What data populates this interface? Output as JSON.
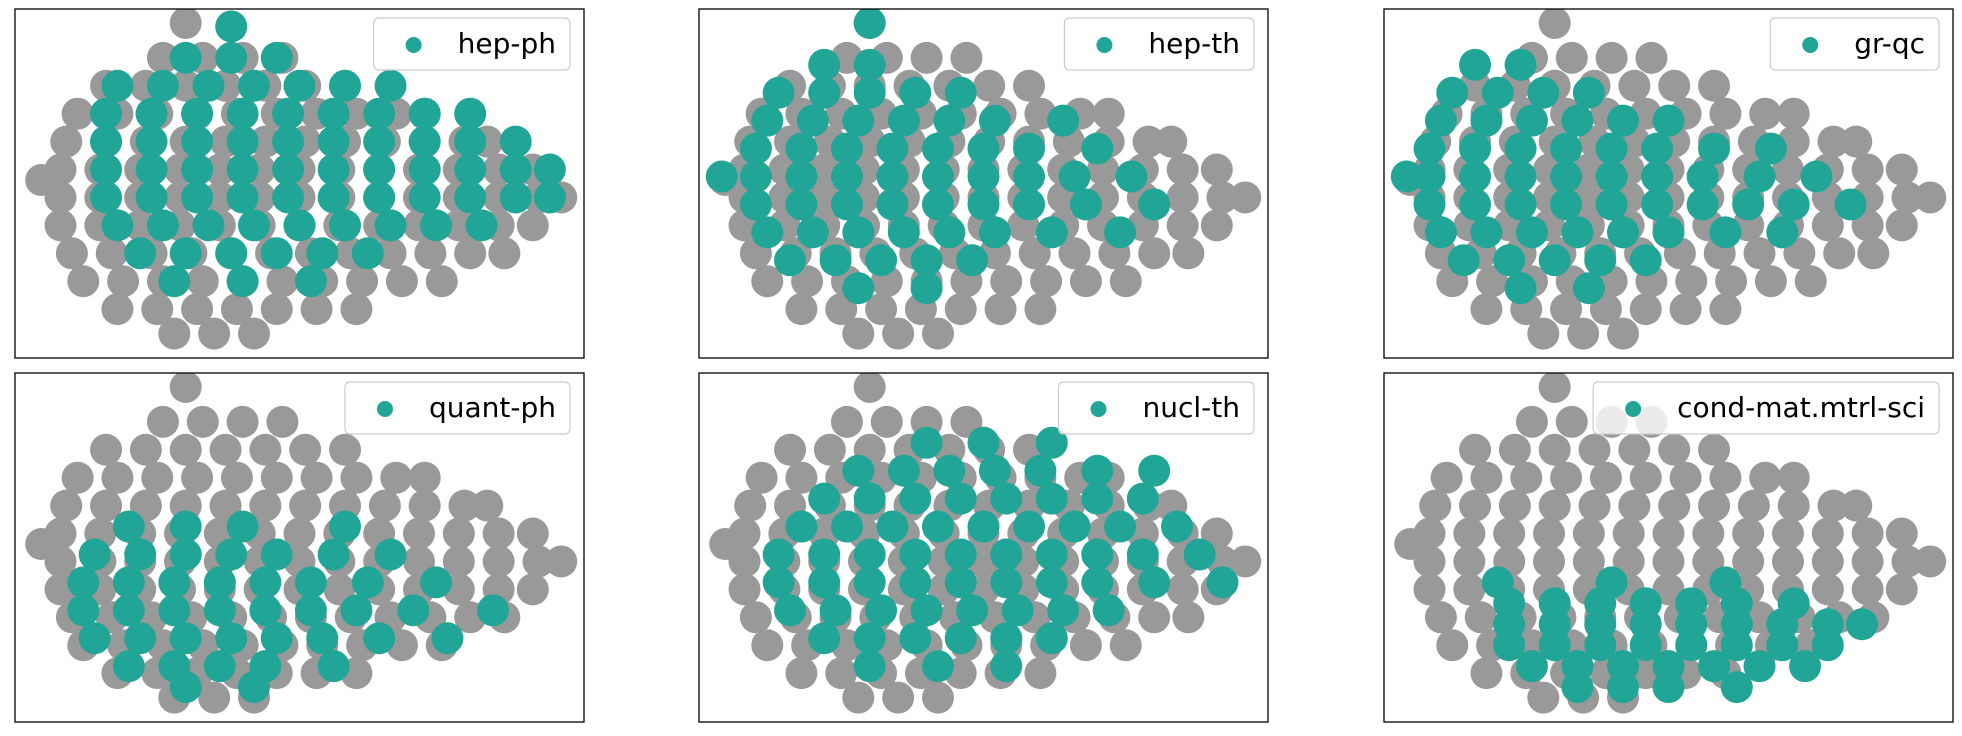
{
  "chart_data": {
    "type": "scatter",
    "xlim": [
      0,
      100
    ],
    "ylim": [
      0,
      100
    ],
    "legend": "upper right",
    "all_points": {
      "color": "#999999",
      "x": [
        26,
        33,
        40,
        47,
        16,
        23,
        30,
        37,
        44,
        51,
        58,
        11,
        18,
        25,
        32,
        39,
        46,
        53,
        60,
        67,
        72,
        9,
        16,
        23,
        30,
        37,
        44,
        51,
        58,
        65,
        72,
        79,
        83,
        8,
        15,
        22,
        29,
        36,
        43,
        50,
        57,
        64,
        71,
        78,
        85,
        91,
        8,
        15,
        22,
        29,
        36,
        43,
        50,
        57,
        64,
        71,
        78,
        85,
        92,
        96,
        8,
        15,
        22,
        29,
        36,
        43,
        50,
        57,
        64,
        71,
        78,
        85,
        91,
        10,
        17,
        24,
        31,
        38,
        45,
        52,
        59,
        66,
        73,
        80,
        86,
        12,
        19,
        26,
        33,
        40,
        47,
        54,
        61,
        68,
        75,
        18,
        25,
        32,
        39,
        46,
        53,
        60,
        28,
        35,
        42,
        4.6,
        30
      ],
      "y": [
        86,
        86,
        86,
        86,
        78,
        78,
        78,
        78,
        78,
        78,
        78,
        70,
        70,
        70,
        70,
        70,
        70,
        70,
        70,
        70,
        70,
        62,
        62,
        62,
        62,
        62,
        62,
        62,
        62,
        62,
        62,
        62,
        62,
        54,
        54,
        54,
        54,
        54,
        54,
        54,
        54,
        54,
        54,
        54,
        54,
        54,
        46,
        46,
        46,
        46,
        46,
        46,
        46,
        46,
        46,
        46,
        46,
        46,
        46,
        46,
        38,
        38,
        38,
        38,
        38,
        38,
        38,
        38,
        38,
        38,
        38,
        38,
        38,
        30,
        30,
        30,
        30,
        30,
        30,
        30,
        30,
        30,
        30,
        30,
        30,
        22,
        22,
        22,
        22,
        22,
        22,
        22,
        22,
        22,
        22,
        14,
        14,
        14,
        14,
        14,
        14,
        14,
        7,
        7,
        7,
        51,
        96
      ]
    },
    "panels": [
      {
        "name": "hep-ph",
        "color": "#21a597",
        "x": [
          30,
          38,
          46,
          38,
          18,
          26,
          34,
          42,
          50,
          58,
          66,
          16,
          24,
          32,
          40,
          48,
          56,
          64,
          72,
          80,
          16,
          24,
          32,
          40,
          48,
          56,
          64,
          72,
          80,
          88,
          16,
          24,
          32,
          40,
          48,
          56,
          64,
          72,
          80,
          88,
          94,
          16,
          24,
          32,
          40,
          48,
          56,
          64,
          72,
          80,
          88,
          94,
          18,
          26,
          34,
          42,
          50,
          58,
          66,
          74,
          82,
          22,
          30,
          38,
          46,
          54,
          62,
          28,
          40,
          52
        ],
        "y": [
          86,
          86,
          86,
          95,
          78,
          78,
          78,
          78,
          78,
          78,
          78,
          70,
          70,
          70,
          70,
          70,
          70,
          70,
          70,
          70,
          62,
          62,
          62,
          62,
          62,
          62,
          62,
          62,
          62,
          62,
          54,
          54,
          54,
          54,
          54,
          54,
          54,
          54,
          54,
          54,
          54,
          46,
          46,
          46,
          46,
          46,
          46,
          46,
          46,
          46,
          46,
          46,
          38,
          38,
          38,
          38,
          38,
          38,
          38,
          38,
          38,
          30,
          30,
          30,
          30,
          30,
          30,
          22,
          22,
          22
        ]
      },
      {
        "name": "hep-th",
        "color": "#21a597",
        "x": [
          30,
          22,
          30,
          14,
          22,
          30,
          38,
          46,
          12,
          20,
          28,
          36,
          44,
          52,
          64,
          10,
          18,
          26,
          34,
          42,
          50,
          58,
          70,
          4,
          10,
          18,
          26,
          34,
          42,
          50,
          58,
          66,
          76,
          10,
          18,
          26,
          34,
          42,
          50,
          58,
          68,
          80,
          12,
          20,
          28,
          36,
          44,
          52,
          62,
          74,
          16,
          24,
          32,
          40,
          48,
          28,
          40
        ],
        "y": [
          96,
          84,
          84,
          76,
          76,
          76,
          76,
          76,
          68,
          68,
          68,
          68,
          68,
          68,
          68,
          60,
          60,
          60,
          60,
          60,
          60,
          60,
          60,
          52,
          52,
          52,
          52,
          52,
          52,
          52,
          52,
          52,
          52,
          44,
          44,
          44,
          44,
          44,
          44,
          44,
          44,
          44,
          36,
          36,
          36,
          36,
          36,
          36,
          36,
          36,
          28,
          28,
          28,
          28,
          28,
          20,
          20
        ]
      },
      {
        "name": "gr-qc",
        "color": "#21a597",
        "x": [
          16,
          24,
          12,
          20,
          28,
          36,
          10,
          18,
          26,
          34,
          42,
          50,
          8,
          16,
          24,
          32,
          40,
          48,
          58,
          68,
          4,
          8,
          16,
          24,
          32,
          40,
          48,
          56,
          66,
          76,
          8,
          16,
          24,
          32,
          40,
          48,
          56,
          64,
          72,
          82,
          10,
          18,
          26,
          34,
          42,
          50,
          60,
          70,
          14,
          22,
          30,
          38,
          46,
          24,
          36
        ],
        "y": [
          84,
          84,
          76,
          76,
          76,
          76,
          68,
          68,
          68,
          68,
          68,
          68,
          60,
          60,
          60,
          60,
          60,
          60,
          60,
          60,
          52,
          52,
          52,
          52,
          52,
          52,
          52,
          52,
          52,
          52,
          44,
          44,
          44,
          44,
          44,
          44,
          44,
          44,
          44,
          44,
          36,
          36,
          36,
          36,
          36,
          36,
          36,
          36,
          28,
          28,
          28,
          28,
          28,
          20,
          20
        ]
      },
      {
        "name": "quant-ph",
        "color": "#21a597",
        "x": [
          20,
          30,
          40,
          58,
          14,
          22,
          30,
          38,
          46,
          56,
          66,
          12,
          20,
          28,
          36,
          44,
          52,
          62,
          74,
          12,
          20,
          28,
          36,
          44,
          52,
          60,
          70,
          84,
          14,
          22,
          30,
          38,
          46,
          54,
          64,
          76,
          20,
          28,
          36,
          44,
          56,
          30,
          42
        ],
        "y": [
          56,
          56,
          56,
          56,
          48,
          48,
          48,
          48,
          48,
          48,
          48,
          40,
          40,
          40,
          40,
          40,
          40,
          40,
          40,
          32,
          32,
          32,
          32,
          32,
          32,
          32,
          32,
          32,
          24,
          24,
          24,
          24,
          24,
          24,
          24,
          24,
          16,
          16,
          16,
          16,
          16,
          10,
          10
        ]
      },
      {
        "name": "nucl-th",
        "color": "#21a597",
        "x": [
          40,
          50,
          62,
          28,
          36,
          44,
          52,
          60,
          70,
          80,
          22,
          30,
          38,
          46,
          54,
          62,
          70,
          78,
          18,
          26,
          34,
          42,
          50,
          58,
          66,
          74,
          84,
          14,
          22,
          30,
          38,
          46,
          54,
          62,
          70,
          78,
          88,
          14,
          22,
          30,
          38,
          46,
          54,
          62,
          70,
          80,
          92,
          16,
          24,
          32,
          40,
          48,
          56,
          64,
          72,
          22,
          30,
          38,
          46,
          54,
          62,
          30,
          42,
          54
        ],
        "y": [
          80,
          80,
          80,
          72,
          72,
          72,
          72,
          72,
          72,
          72,
          64,
          64,
          64,
          64,
          64,
          64,
          64,
          64,
          56,
          56,
          56,
          56,
          56,
          56,
          56,
          56,
          56,
          48,
          48,
          48,
          48,
          48,
          48,
          48,
          48,
          48,
          48,
          40,
          40,
          40,
          40,
          40,
          40,
          40,
          40,
          40,
          40,
          32,
          32,
          32,
          32,
          32,
          32,
          32,
          32,
          24,
          24,
          24,
          24,
          24,
          24,
          16,
          16,
          16
        ]
      },
      {
        "name": "cond-mat.mtrl-sci",
        "color": "#21a597",
        "x": [
          20,
          40,
          60,
          22,
          30,
          38,
          46,
          54,
          62,
          72,
          22,
          30,
          38,
          46,
          54,
          62,
          70,
          78,
          84,
          22,
          30,
          38,
          46,
          54,
          62,
          70,
          78,
          26,
          34,
          42,
          50,
          58,
          66,
          74,
          34,
          42,
          50,
          62
        ],
        "y": [
          40,
          40,
          40,
          34,
          34,
          34,
          34,
          34,
          34,
          34,
          28,
          28,
          28,
          28,
          28,
          28,
          28,
          28,
          28,
          22,
          22,
          22,
          22,
          22,
          22,
          22,
          22,
          16,
          16,
          16,
          16,
          16,
          16,
          16,
          10,
          10,
          10,
          10
        ]
      }
    ]
  }
}
